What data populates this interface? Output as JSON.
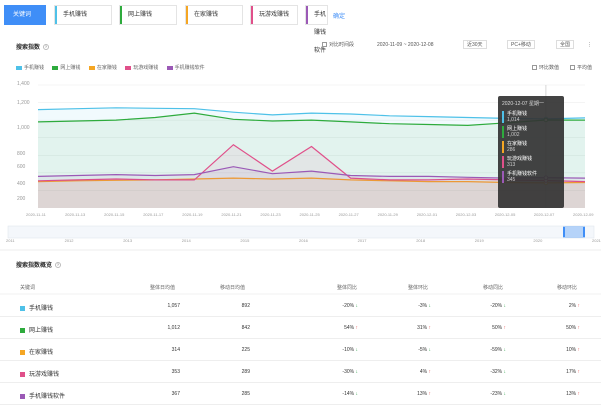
{
  "tabs": [
    {
      "label": "关键词",
      "active": true,
      "color": "#3f8ef7"
    },
    {
      "label": "手机赚钱",
      "active": false,
      "color": "#4ec1e8"
    },
    {
      "label": "网上赚钱",
      "active": false,
      "color": "#2eab3d"
    },
    {
      "label": "在家赚钱",
      "active": false,
      "color": "#f5a623"
    },
    {
      "label": "玩游戏赚钱",
      "active": false,
      "color": "#e0508a"
    },
    {
      "label": "手机赚钱软件",
      "active": false,
      "color": "#9b59b6"
    }
  ],
  "compare_label": "确定",
  "trend": {
    "title": "搜索指数",
    "compare_label": "对比时间段",
    "date_range": "2020-11-09 ~ 2020-12-08",
    "period": "近30天",
    "device": "PC+移动",
    "region": "全国",
    "ratio_label": "环比数值",
    "avg_label": "平均值"
  },
  "legend": [
    {
      "name": "手机赚钱",
      "color": "#4ec1e8"
    },
    {
      "name": "网上赚钱",
      "color": "#2eab3d"
    },
    {
      "name": "在家赚钱",
      "color": "#f5a623"
    },
    {
      "name": "玩游戏赚钱",
      "color": "#e0508a"
    },
    {
      "name": "手机赚钱软件",
      "color": "#9b59b6"
    }
  ],
  "chart_data": {
    "type": "line",
    "x": [
      "2020-11-11",
      "2020-11-13",
      "2020-11-15",
      "2020-11-17",
      "2020-11-19",
      "2020-11-21",
      "2020-11-23",
      "2020-11-25",
      "2020-11-27",
      "2020-11-29",
      "2020-12-01",
      "2020-12-03",
      "2020-12-05",
      "2020-12-07",
      "2020-12-09"
    ],
    "yticks": [
      "1,400",
      "1,200",
      "1,000",
      "800",
      "600",
      "400",
      "200"
    ],
    "ylim": [
      0,
      1400
    ],
    "series": [
      {
        "name": "手机赚钱",
        "color": "#4ec1e8",
        "values": [
          1120,
          1130,
          1140,
          1135,
          1130,
          1090,
          1060,
          1080,
          1070,
          1050,
          1040,
          1030,
          1020,
          1014,
          1025
        ]
      },
      {
        "name": "网上赚钱",
        "color": "#2eab3d",
        "values": [
          980,
          990,
          1000,
          1030,
          1080,
          1010,
          990,
          1000,
          980,
          960,
          950,
          940,
          970,
          1002,
          1000
        ]
      },
      {
        "name": "在家赚钱",
        "color": "#f5a623",
        "values": [
          300,
          310,
          315,
          320,
          330,
          340,
          330,
          340,
          320,
          310,
          300,
          300,
          290,
          286,
          290
        ]
      },
      {
        "name": "玩游戏赚钱",
        "color": "#e0508a",
        "values": [
          310,
          320,
          330,
          320,
          320,
          720,
          420,
          700,
          340,
          320,
          320,
          330,
          320,
          313,
          300
        ]
      },
      {
        "name": "手机赚钱软件",
        "color": "#9b59b6",
        "values": [
          360,
          370,
          380,
          370,
          380,
          470,
          390,
          420,
          370,
          360,
          360,
          350,
          340,
          345,
          340
        ]
      }
    ],
    "year_ticks": [
      "2011",
      "2012",
      "2013",
      "2014",
      "2015",
      "2016",
      "2017",
      "2018",
      "2019",
      "2020",
      "2021"
    ]
  },
  "tooltip": {
    "date": "2020-12-07 星期一",
    "items": [
      {
        "name": "手机赚钱",
        "value": "1,014",
        "color": "#4ec1e8"
      },
      {
        "name": "网上赚钱",
        "value": "1,002",
        "color": "#2eab3d"
      },
      {
        "name": "在家赚钱",
        "value": "286",
        "color": "#f5a623"
      },
      {
        "name": "玩游戏赚钱",
        "value": "313",
        "color": "#e0508a"
      },
      {
        "name": "手机赚钱软件",
        "value": "345",
        "color": "#9b59b6"
      }
    ]
  },
  "overview": {
    "title": "搜索指数概览",
    "headers": [
      "关键词",
      "整体日均值",
      "移动日均值",
      "整体同比",
      "整体环比",
      "移动同比",
      "移动环比"
    ],
    "rows": [
      {
        "name": "手机赚钱",
        "color": "#4ec1e8",
        "avg": "1,057",
        "mavg": "892",
        "yoy": "-20%",
        "yoy_dir": "down",
        "mom": "-3%",
        "mom_dir": "down",
        "myoy": "-20%",
        "myoy_dir": "down",
        "mmom": "2%",
        "mmom_dir": "up"
      },
      {
        "name": "网上赚钱",
        "color": "#2eab3d",
        "avg": "1,012",
        "mavg": "842",
        "yoy": "54%",
        "yoy_dir": "up",
        "mom": "31%",
        "mom_dir": "up",
        "myoy": "50%",
        "myoy_dir": "up",
        "mmom": "50%",
        "mmom_dir": "up"
      },
      {
        "name": "在家赚钱",
        "color": "#f5a623",
        "avg": "314",
        "mavg": "225",
        "yoy": "-10%",
        "yoy_dir": "down",
        "mom": "-5%",
        "mom_dir": "down",
        "myoy": "-59%",
        "myoy_dir": "down",
        "mmom": "10%",
        "mmom_dir": "up"
      },
      {
        "name": "玩游戏赚钱",
        "color": "#e0508a",
        "avg": "353",
        "mavg": "289",
        "yoy": "-30%",
        "yoy_dir": "down",
        "mom": "4%",
        "mom_dir": "up",
        "myoy": "-32%",
        "myoy_dir": "down",
        "mmom": "17%",
        "mmom_dir": "up"
      },
      {
        "name": "手机赚钱软件",
        "color": "#9b59b6",
        "avg": "367",
        "mavg": "285",
        "yoy": "-14%",
        "yoy_dir": "down",
        "mom": "13%",
        "mom_dir": "up",
        "myoy": "-23%",
        "myoy_dir": "down",
        "mmom": "13%",
        "mmom_dir": "up"
      }
    ]
  }
}
